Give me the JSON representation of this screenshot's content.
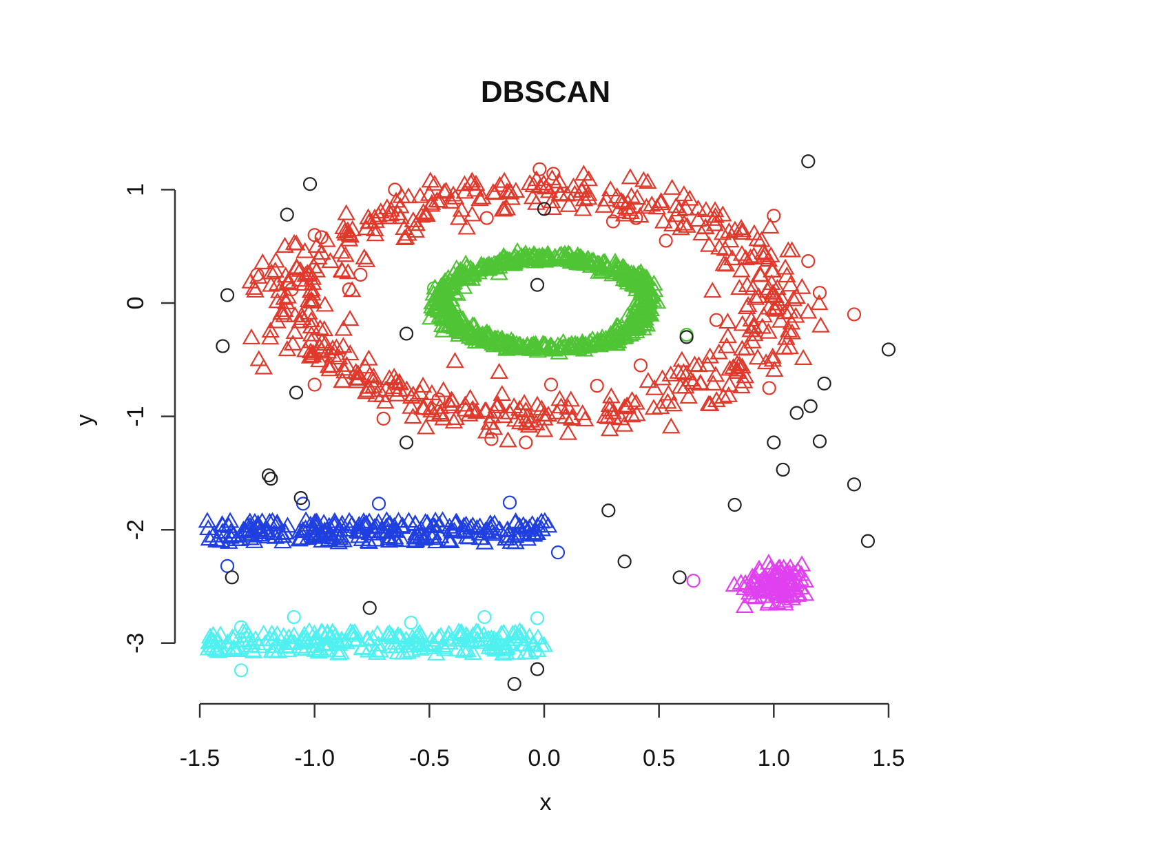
{
  "chart_data": {
    "type": "scatter",
    "title": "DBSCAN",
    "xlabel": "x",
    "ylabel": "y",
    "xlim": [
      -1.5,
      1.5
    ],
    "ylim": [
      -3.3,
      1.3
    ],
    "x_ticks": [
      "-1.5",
      "-1.0",
      "-0.5",
      "0.0",
      "0.5",
      "1.0",
      "1.5"
    ],
    "y_ticks": [
      "1",
      "0",
      "-1",
      "-2",
      "-3"
    ],
    "grid": false,
    "legend": "none",
    "marker_encoding": {
      "triangle": "core point",
      "circle": "border/noise point"
    },
    "colors": {
      "noise": "#222222",
      "outer_ring": "#e0392b",
      "inner_ring": "#4fc435",
      "blue_band": "#1f3fe0",
      "cyan_band": "#4ff0f0",
      "magenta_blob": "#e040f0"
    },
    "series": [
      {
        "color_key": "outer_ring",
        "generator": {
          "shape": "ring",
          "cx": -0.05,
          "cy": 0.0,
          "rx": 1.05,
          "ry": 1.0,
          "thickness": 0.2,
          "n_core": 520
        },
        "border_points": [
          [
            -0.65,
            1.0
          ],
          [
            -0.02,
            1.18
          ],
          [
            0.04,
            1.14
          ],
          [
            -0.25,
            0.75
          ],
          [
            0.3,
            0.72
          ],
          [
            0.4,
            0.75
          ],
          [
            -1.0,
            0.6
          ],
          [
            -0.97,
            0.58
          ],
          [
            -1.25,
            0.25
          ],
          [
            -1.1,
            0.12
          ],
          [
            -0.85,
            0.12
          ],
          [
            -0.8,
            0.25
          ],
          [
            -1.0,
            -0.72
          ],
          [
            -0.7,
            -1.02
          ],
          [
            -0.46,
            -0.85
          ],
          [
            -0.23,
            -1.2
          ],
          [
            -0.08,
            -1.23
          ],
          [
            0.03,
            -0.72
          ],
          [
            0.23,
            -0.73
          ],
          [
            0.42,
            -0.55
          ],
          [
            0.75,
            -0.15
          ],
          [
            0.98,
            -0.75
          ],
          [
            1.0,
            0.77
          ],
          [
            1.15,
            0.37
          ],
          [
            1.2,
            0.09
          ],
          [
            1.35,
            -0.1
          ],
          [
            0.53,
            0.55
          ]
        ]
      },
      {
        "color_key": "inner_ring",
        "generator": {
          "shape": "ring",
          "cx": 0.0,
          "cy": 0.0,
          "rx": 0.45,
          "ry": 0.4,
          "thickness": 0.12,
          "n_core": 620
        },
        "border_points": [
          [
            -0.48,
            0.13
          ],
          [
            0.62,
            -0.28
          ]
        ]
      },
      {
        "color_key": "blue_band",
        "generator": {
          "shape": "band",
          "x0": -1.47,
          "x1": 0.02,
          "y": -2.02,
          "spread": 0.1,
          "n_core": 230
        },
        "border_points": [
          [
            -1.38,
            -2.32
          ],
          [
            -1.05,
            -1.77
          ],
          [
            -0.72,
            -1.77
          ],
          [
            -0.15,
            -1.76
          ],
          [
            0.06,
            -2.2
          ]
        ]
      },
      {
        "color_key": "cyan_band",
        "generator": {
          "shape": "band",
          "x0": -1.47,
          "x1": 0.0,
          "y": -3.0,
          "spread": 0.1,
          "n_core": 220
        },
        "border_points": [
          [
            -1.32,
            -3.24
          ],
          [
            -1.32,
            -2.86
          ],
          [
            -1.09,
            -2.77
          ],
          [
            -0.58,
            -2.82
          ],
          [
            -0.26,
            -2.77
          ],
          [
            -0.03,
            -2.78
          ],
          [
            -0.04,
            -3.08
          ]
        ]
      },
      {
        "color_key": "magenta_blob",
        "generator": {
          "shape": "blob",
          "cx": 1.02,
          "cy": -2.48,
          "rx": 0.12,
          "ry": 0.14,
          "n_core": 110
        },
        "border_points": [
          [
            0.65,
            -2.45
          ]
        ]
      },
      {
        "color_key": "noise",
        "generator": null,
        "border_points": [
          [
            -1.02,
            1.05
          ],
          [
            -1.12,
            0.78
          ],
          [
            -1.38,
            0.07
          ],
          [
            -1.4,
            -0.38
          ],
          [
            -1.08,
            -0.79
          ],
          [
            -0.6,
            -0.27
          ],
          [
            -0.03,
            0.16
          ],
          [
            0.0,
            0.83
          ],
          [
            0.62,
            -0.3
          ],
          [
            1.15,
            1.25
          ],
          [
            1.5,
            -0.41
          ],
          [
            1.22,
            -0.71
          ],
          [
            1.16,
            -0.91
          ],
          [
            1.1,
            -0.97
          ],
          [
            1.0,
            -1.23
          ],
          [
            1.2,
            -1.22
          ],
          [
            1.04,
            -1.47
          ],
          [
            1.35,
            -1.6
          ],
          [
            0.83,
            -1.78
          ],
          [
            0.28,
            -1.83
          ],
          [
            0.35,
            -2.28
          ],
          [
            0.59,
            -2.42
          ],
          [
            1.41,
            -2.1
          ],
          [
            -0.6,
            -1.23
          ],
          [
            -1.2,
            -1.52
          ],
          [
            -1.19,
            -1.55
          ],
          [
            -1.06,
            -1.72
          ],
          [
            -1.36,
            -2.42
          ],
          [
            -0.76,
            -2.69
          ],
          [
            -0.03,
            -3.23
          ],
          [
            -0.13,
            -3.36
          ]
        ]
      }
    ]
  }
}
